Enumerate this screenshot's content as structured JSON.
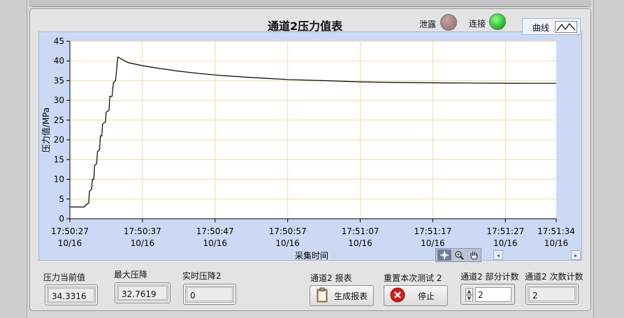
{
  "graph": {
    "title": "通道2压力值表",
    "leak_label": "泄露",
    "connect_label": "连接",
    "legend_label": "曲线",
    "xlabel": "采集时间",
    "ylabel": "压力值/MPa"
  },
  "chart_data": {
    "type": "line",
    "title": "通道2压力值表",
    "xlabel": "采集时间",
    "ylabel": "压力值/MPa",
    "ylim": [
      0,
      45
    ],
    "xlim_seconds": [
      0,
      67
    ],
    "yticks": [
      "0",
      "5",
      "10",
      "15",
      "20",
      "25",
      "30",
      "35",
      "40",
      "45"
    ],
    "xticks": [
      {
        "t": 0,
        "time": "17:50:27",
        "date": "10/16"
      },
      {
        "t": 10,
        "time": "17:50:37",
        "date": "10/16"
      },
      {
        "t": 20,
        "time": "17:50:47",
        "date": "10/16"
      },
      {
        "t": 30,
        "time": "17:50:57",
        "date": "10/16"
      },
      {
        "t": 40,
        "time": "17:51:07",
        "date": "10/16"
      },
      {
        "t": 50,
        "time": "17:51:17",
        "date": "10/16"
      },
      {
        "t": 60,
        "time": "17:51:27",
        "date": "10/16"
      },
      {
        "t": 67,
        "time": "17:51:34",
        "date": "10/16"
      }
    ],
    "grid": true,
    "series": [
      {
        "color": "#000000",
        "x": [
          0,
          2,
          2.2,
          2.6,
          2.7,
          3.0,
          3.1,
          3.3,
          3.4,
          3.7,
          3.8,
          4.1,
          4.2,
          4.4,
          4.5,
          4.9,
          5.0,
          5.4,
          5.5,
          5.8,
          6.0,
          6.3,
          6.6,
          8,
          10,
          12,
          15,
          18,
          21,
          25,
          30,
          35,
          40,
          45,
          50,
          55,
          60,
          65,
          67
        ],
        "y": [
          3,
          3,
          3.5,
          4,
          7,
          7.5,
          10,
          10,
          13.5,
          14,
          17,
          17.5,
          21,
          21,
          24,
          24.5,
          27,
          27.5,
          31,
          31,
          34.5,
          35,
          41,
          39.6,
          38.8,
          38.2,
          37.4,
          36.8,
          36.3,
          35.8,
          35.3,
          35.0,
          34.7,
          34.55,
          34.45,
          34.4,
          34.35,
          34.33,
          34.33
        ]
      }
    ]
  },
  "indicators": [
    {
      "label": "压力当前值",
      "value": "34.3316"
    },
    {
      "label": "最大压降",
      "value": "32.7619"
    },
    {
      "label": "实时压降2",
      "value": "0"
    }
  ],
  "report": {
    "label": "通道2 报表",
    "button": "生成报表"
  },
  "reset": {
    "label": "重置本次测试 2",
    "button": "停止"
  },
  "part_count": {
    "label": "通道2 部分计数",
    "value": "2"
  },
  "times_count": {
    "label": "通道2 次数计数",
    "value": "2"
  },
  "colors": {
    "led_off": "#a58588",
    "led_on": "#22bb22",
    "grid": "#f0dca0",
    "plot_frame": "#ccd9f4"
  }
}
